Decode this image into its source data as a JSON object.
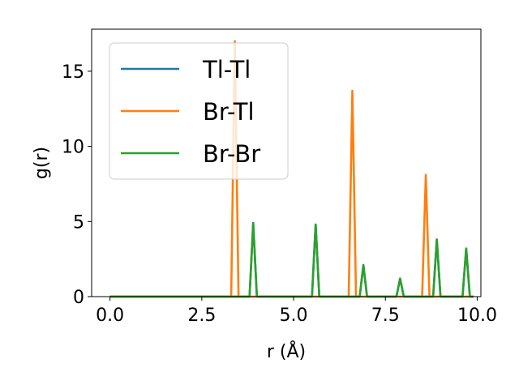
{
  "chart_data": {
    "type": "line",
    "xlabel": "r (Å)",
    "ylabel": "g(r)",
    "xlim": [
      -0.5,
      10.1
    ],
    "ylim": [
      0,
      17.8
    ],
    "xticks": [
      0.0,
      2.5,
      5.0,
      7.5,
      10.0
    ],
    "xtick_labels": [
      "0.0",
      "2.5",
      "5.0",
      "7.5",
      "10.0"
    ],
    "yticks": [
      0,
      5,
      10,
      15
    ],
    "ytick_labels": [
      "0",
      "5",
      "10",
      "15"
    ],
    "grid": false,
    "legend_position": "top-left",
    "series": [
      {
        "name": "Tl-Tl",
        "color": "#1f77b4",
        "x": [
          0.0,
          3.8,
          3.9,
          4.0,
          5.5,
          5.6,
          5.7,
          6.8,
          6.9,
          7.0,
          7.8,
          7.9,
          8.0,
          8.8,
          8.9,
          9.0,
          9.6,
          9.7,
          9.8,
          9.9
        ],
        "y": [
          0,
          0,
          4.9,
          0,
          0,
          4.8,
          0,
          0,
          2.1,
          0,
          0,
          1.2,
          0,
          0,
          3.8,
          0,
          0,
          3.2,
          0,
          0
        ]
      },
      {
        "name": "Br-Tl",
        "color": "#ff7f0e",
        "x": [
          0.0,
          3.3,
          3.4,
          3.5,
          6.5,
          6.6,
          6.7,
          8.5,
          8.6,
          8.7,
          9.9
        ],
        "y": [
          0,
          0,
          17.0,
          0,
          0,
          13.7,
          0,
          0,
          8.1,
          0,
          0
        ]
      },
      {
        "name": "Br-Br",
        "color": "#2ca02c",
        "x": [
          0.0,
          3.8,
          3.9,
          4.0,
          5.5,
          5.6,
          5.7,
          6.8,
          6.9,
          7.0,
          7.8,
          7.9,
          8.0,
          8.8,
          8.9,
          9.0,
          9.6,
          9.7,
          9.8,
          9.9
        ],
        "y": [
          0,
          0,
          4.9,
          0,
          0,
          4.8,
          0,
          0,
          2.1,
          0,
          0,
          1.2,
          0,
          0,
          3.8,
          0,
          0,
          3.2,
          0,
          0
        ]
      }
    ]
  }
}
